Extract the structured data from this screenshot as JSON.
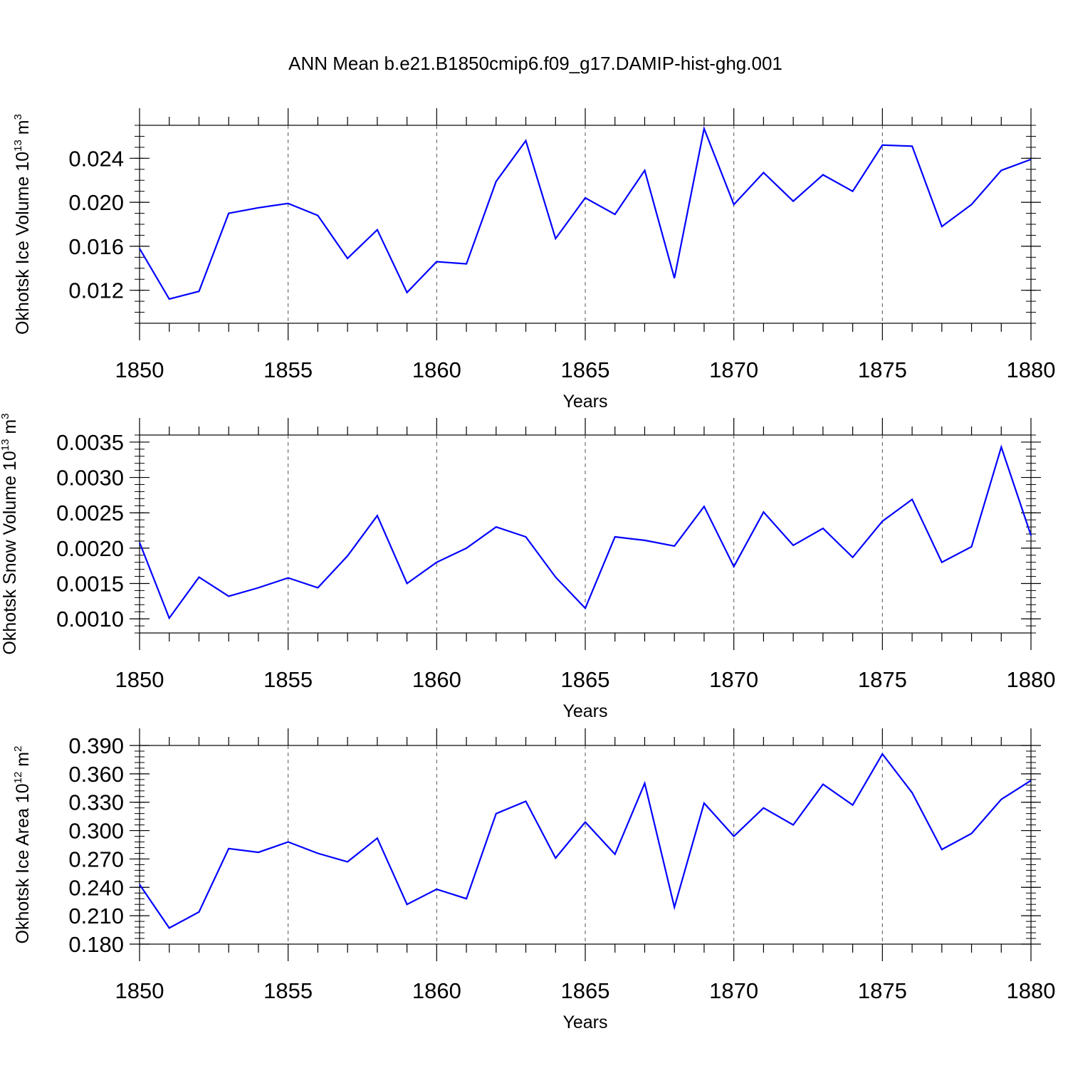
{
  "title": "ANN Mean b.e21.B1850cmip6.f09_g17.DAMIP-hist-ghg.001",
  "colors": {
    "line": "#0000ff",
    "axis": "#000000",
    "grid": "#555555"
  },
  "chart_data": [
    {
      "type": "line",
      "ylabel": {
        "main": "Okhotsk Ice Volume 10",
        "sup": "13",
        "unit": " m",
        "unitsup": "3"
      },
      "xlabel": "Years",
      "x": [
        1850,
        1851,
        1852,
        1853,
        1854,
        1855,
        1856,
        1857,
        1858,
        1859,
        1860,
        1861,
        1862,
        1863,
        1864,
        1865,
        1866,
        1867,
        1868,
        1869,
        1870,
        1871,
        1872,
        1873,
        1874,
        1875,
        1876,
        1877,
        1878,
        1879,
        1880
      ],
      "xlim": [
        1850,
        1880
      ],
      "xticks": [
        1850,
        1855,
        1860,
        1865,
        1870,
        1875,
        1880
      ],
      "xtick_labels": [
        "1850",
        "1855",
        "1860",
        "1865",
        "1870",
        "1875",
        "1880"
      ],
      "ylim": [
        0.009,
        0.027
      ],
      "yticks": [
        0.012,
        0.016,
        0.02,
        0.024
      ],
      "ytick_labels": [
        "0.012",
        "0.016",
        "0.020",
        "0.024"
      ],
      "y_minor_step": 0.001,
      "values": [
        0.0158,
        0.0112,
        0.0119,
        0.019,
        0.0195,
        0.0199,
        0.0188,
        0.0149,
        0.0175,
        0.0118,
        0.0146,
        0.0144,
        0.0219,
        0.0256,
        0.0167,
        0.0204,
        0.0189,
        0.0229,
        0.0131,
        0.0267,
        0.0198,
        0.0227,
        0.0201,
        0.0225,
        0.021,
        0.0252,
        0.0251,
        0.0178,
        0.0198,
        0.0229,
        0.0239
      ]
    },
    {
      "type": "line",
      "ylabel": {
        "main": "Okhotsk Snow Volume 10",
        "sup": "13",
        "unit": " m",
        "unitsup": "3"
      },
      "xlabel": "Years",
      "x": [
        1850,
        1851,
        1852,
        1853,
        1854,
        1855,
        1856,
        1857,
        1858,
        1859,
        1860,
        1861,
        1862,
        1863,
        1864,
        1865,
        1866,
        1867,
        1868,
        1869,
        1870,
        1871,
        1872,
        1873,
        1874,
        1875,
        1876,
        1877,
        1878,
        1879,
        1880
      ],
      "xlim": [
        1850,
        1880
      ],
      "xticks": [
        1850,
        1855,
        1860,
        1865,
        1870,
        1875,
        1880
      ],
      "xtick_labels": [
        "1850",
        "1855",
        "1860",
        "1865",
        "1870",
        "1875",
        "1880"
      ],
      "ylim": [
        0.0008,
        0.0036
      ],
      "yticks": [
        0.001,
        0.0015,
        0.002,
        0.0025,
        0.003,
        0.0035
      ],
      "ytick_labels": [
        "0.0010",
        "0.0015",
        "0.0020",
        "0.0025",
        "0.0030",
        "0.0035"
      ],
      "y_minor_step": 0.0001,
      "values": [
        0.00208,
        0.00101,
        0.00159,
        0.00132,
        0.00144,
        0.00158,
        0.00144,
        0.00189,
        0.00246,
        0.0015,
        0.0018,
        0.002,
        0.0023,
        0.00216,
        0.00159,
        0.00115,
        0.00216,
        0.00211,
        0.00203,
        0.00259,
        0.00174,
        0.00251,
        0.00204,
        0.00228,
        0.00187,
        0.00238,
        0.00269,
        0.0018,
        0.00202,
        0.00343,
        0.00218
      ]
    },
    {
      "type": "line",
      "ylabel": {
        "main": "Okhotsk Ice Area 10",
        "sup": "12",
        "unit": " m",
        "unitsup": "2"
      },
      "xlabel": "Years",
      "x": [
        1850,
        1851,
        1852,
        1853,
        1854,
        1855,
        1856,
        1857,
        1858,
        1859,
        1860,
        1861,
        1862,
        1863,
        1864,
        1865,
        1866,
        1867,
        1868,
        1869,
        1870,
        1871,
        1872,
        1873,
        1874,
        1875,
        1876,
        1877,
        1878,
        1879,
        1880
      ],
      "xlim": [
        1850,
        1880
      ],
      "xticks": [
        1850,
        1855,
        1860,
        1865,
        1870,
        1875,
        1880
      ],
      "xtick_labels": [
        "1850",
        "1855",
        "1860",
        "1865",
        "1870",
        "1875",
        "1880"
      ],
      "ylim": [
        0.18,
        0.39
      ],
      "yticks": [
        0.18,
        0.21,
        0.24,
        0.27,
        0.3,
        0.33,
        0.36,
        0.39
      ],
      "ytick_labels": [
        "0.180",
        "0.210",
        "0.240",
        "0.270",
        "0.300",
        "0.330",
        "0.360",
        "0.390"
      ],
      "y_minor_step": 0.006,
      "values": [
        0.243,
        0.197,
        0.214,
        0.281,
        0.277,
        0.288,
        0.276,
        0.267,
        0.292,
        0.222,
        0.238,
        0.228,
        0.318,
        0.331,
        0.271,
        0.309,
        0.275,
        0.35,
        0.219,
        0.329,
        0.294,
        0.324,
        0.306,
        0.349,
        0.327,
        0.381,
        0.34,
        0.28,
        0.297,
        0.333,
        0.353
      ]
    }
  ]
}
